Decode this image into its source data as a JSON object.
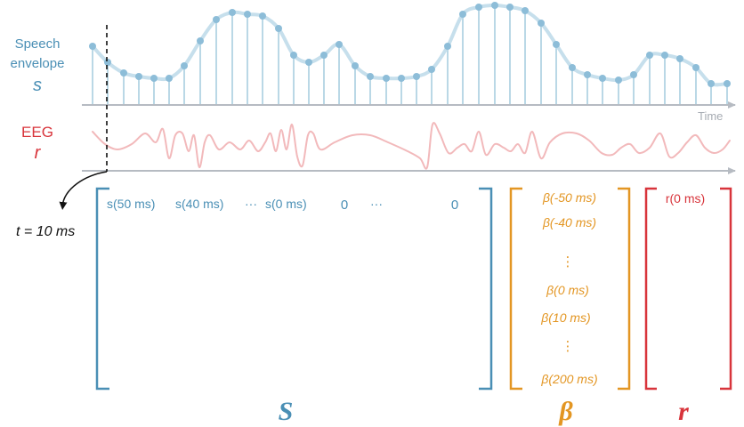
{
  "signals": {
    "speech_label_line1": "Speech",
    "speech_label_line2": "envelope",
    "speech_symbol": "s",
    "time_label": "Time",
    "eeg_label": "EEG",
    "eeg_symbol": "r",
    "time_marker": "t = 10 ms"
  },
  "matrix_S": {
    "row": [
      "s(50 ms)",
      "s(40 ms)",
      "···",
      "s(0 ms)",
      "0",
      "···",
      "0"
    ],
    "label": "S"
  },
  "vector_beta": {
    "entries": [
      "β(-50 ms)",
      "β(-40 ms)",
      "⋮",
      "β(0 ms)",
      "β(10 ms)",
      "⋮",
      "β(200 ms)"
    ],
    "label": "β"
  },
  "vector_r": {
    "entries": [
      "r(0 ms)"
    ],
    "label": "r"
  },
  "colors": {
    "speech": "#4a8fb5",
    "speech_light": "#c6dfec",
    "stem": "#a9cfe0",
    "dot": "#8dbdd8",
    "eeg": "#d8343b",
    "eeg_light": "#f2b9bb",
    "beta": "#e39623",
    "axis": "#b6bbc2"
  }
}
